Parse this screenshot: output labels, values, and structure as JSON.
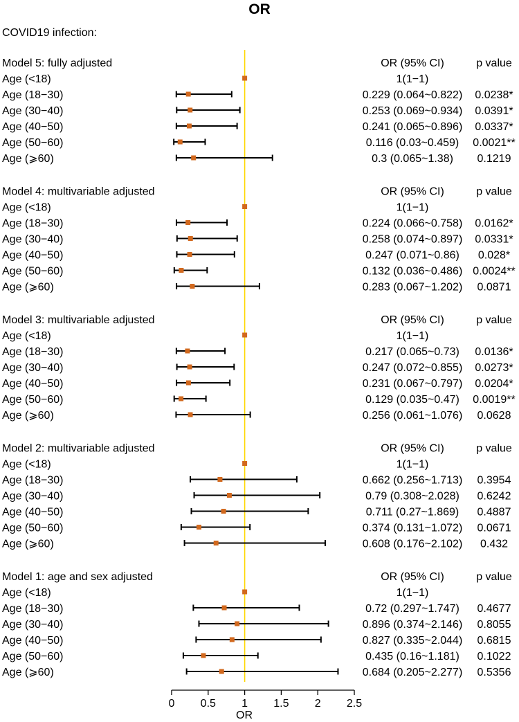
{
  "colors": {
    "ref_line": "#ffd700",
    "point": "#d2691e",
    "bar": "#000000"
  },
  "chart_data": {
    "type": "forest",
    "title": "OR",
    "subtitle": "COVID19 infection:",
    "xlabel": "OR",
    "xlim": [
      0,
      2.5
    ],
    "xticks": [
      0,
      0.5,
      1,
      1.5,
      2,
      2.5
    ],
    "tick_labels": [
      "0",
      "0.5",
      "1",
      "1.5",
      "2",
      "2.5"
    ],
    "reference_value": 1,
    "or_header": "OR (95% CI)",
    "p_header": "p value",
    "groups": [
      {
        "title": "Model 5: fully adjusted",
        "rows": [
          {
            "label": "Age (<18)",
            "or": 1,
            "lo": 1,
            "hi": 1,
            "ci_text": "1(1−1)",
            "p": ""
          },
          {
            "label": "Age (18−30)",
            "or": 0.229,
            "lo": 0.064,
            "hi": 0.822,
            "ci_text": "0.229 (0.064~0.822)",
            "p": "0.0238*"
          },
          {
            "label": "Age (30−40)",
            "or": 0.253,
            "lo": 0.069,
            "hi": 0.934,
            "ci_text": "0.253 (0.069~0.934)",
            "p": "0.0391*"
          },
          {
            "label": "Age (40−50)",
            "or": 0.241,
            "lo": 0.065,
            "hi": 0.896,
            "ci_text": "0.241 (0.065~0.896)",
            "p": "0.0337*"
          },
          {
            "label": "Age (50−60)",
            "or": 0.116,
            "lo": 0.03,
            "hi": 0.459,
            "ci_text": "0.116 (0.03~0.459)",
            "p": "0.0021**"
          },
          {
            "label": "Age (⩾60)",
            "or": 0.3,
            "lo": 0.065,
            "hi": 1.38,
            "ci_text": "0.3 (0.065~1.38)",
            "p": "0.1219"
          }
        ]
      },
      {
        "title": "Model 4: multivariable adjusted",
        "rows": [
          {
            "label": "Age (<18)",
            "or": 1,
            "lo": 1,
            "hi": 1,
            "ci_text": "1(1−1)",
            "p": ""
          },
          {
            "label": "Age (18−30)",
            "or": 0.224,
            "lo": 0.066,
            "hi": 0.758,
            "ci_text": "0.224 (0.066~0.758)",
            "p": "0.0162*"
          },
          {
            "label": "Age (30−40)",
            "or": 0.258,
            "lo": 0.074,
            "hi": 0.897,
            "ci_text": "0.258 (0.074~0.897)",
            "p": "0.0331*"
          },
          {
            "label": "Age (40−50)",
            "or": 0.247,
            "lo": 0.071,
            "hi": 0.86,
            "ci_text": "0.247 (0.071~0.86)",
            "p": "0.028*"
          },
          {
            "label": "Age (50−60)",
            "or": 0.132,
            "lo": 0.036,
            "hi": 0.486,
            "ci_text": "0.132 (0.036~0.486)",
            "p": "0.0024**"
          },
          {
            "label": "Age (⩾60)",
            "or": 0.283,
            "lo": 0.067,
            "hi": 1.202,
            "ci_text": "0.283 (0.067~1.202)",
            "p": "0.0871"
          }
        ]
      },
      {
        "title": "Model 3: multivariable adjusted",
        "rows": [
          {
            "label": "Age (<18)",
            "or": 1,
            "lo": 1,
            "hi": 1,
            "ci_text": "1(1−1)",
            "p": ""
          },
          {
            "label": "Age (18−30)",
            "or": 0.217,
            "lo": 0.065,
            "hi": 0.73,
            "ci_text": "0.217 (0.065~0.73)",
            "p": "0.0136*"
          },
          {
            "label": "Age (30−40)",
            "or": 0.247,
            "lo": 0.072,
            "hi": 0.855,
            "ci_text": "0.247 (0.072~0.855)",
            "p": "0.0273*"
          },
          {
            "label": "Age (40−50)",
            "or": 0.231,
            "lo": 0.067,
            "hi": 0.797,
            "ci_text": "0.231 (0.067~0.797)",
            "p": "0.0204*"
          },
          {
            "label": "Age (50−60)",
            "or": 0.129,
            "lo": 0.035,
            "hi": 0.47,
            "ci_text": "0.129 (0.035~0.47)",
            "p": "0.0019**"
          },
          {
            "label": "Age (⩾60)",
            "or": 0.256,
            "lo": 0.061,
            "hi": 1.076,
            "ci_text": "0.256 (0.061~1.076)",
            "p": "0.0628"
          }
        ]
      },
      {
        "title": "Model 2: multivariable adjusted",
        "rows": [
          {
            "label": "Age (<18)",
            "or": 1,
            "lo": 1,
            "hi": 1,
            "ci_text": "1(1−1)",
            "p": ""
          },
          {
            "label": "Age (18−30)",
            "or": 0.662,
            "lo": 0.256,
            "hi": 1.713,
            "ci_text": "0.662 (0.256~1.713)",
            "p": "0.3954"
          },
          {
            "label": "Age (30−40)",
            "or": 0.79,
            "lo": 0.308,
            "hi": 2.028,
            "ci_text": "0.79 (0.308~2.028)",
            "p": "0.6242"
          },
          {
            "label": "Age (40−50)",
            "or": 0.711,
            "lo": 0.27,
            "hi": 1.869,
            "ci_text": "0.711 (0.27~1.869)",
            "p": "0.4887"
          },
          {
            "label": "Age (50−60)",
            "or": 0.374,
            "lo": 0.131,
            "hi": 1.072,
            "ci_text": "0.374 (0.131~1.072)",
            "p": "0.0671"
          },
          {
            "label": "Age (⩾60)",
            "or": 0.608,
            "lo": 0.176,
            "hi": 2.102,
            "ci_text": "0.608 (0.176~2.102)",
            "p": "0.432"
          }
        ]
      },
      {
        "title": "Model 1: age and sex adjusted",
        "rows": [
          {
            "label": "Age (<18)",
            "or": 1,
            "lo": 1,
            "hi": 1,
            "ci_text": "1(1−1)",
            "p": ""
          },
          {
            "label": "Age (18−30)",
            "or": 0.72,
            "lo": 0.297,
            "hi": 1.747,
            "ci_text": "0.72 (0.297~1.747)",
            "p": "0.4677"
          },
          {
            "label": "Age (30−40)",
            "or": 0.896,
            "lo": 0.374,
            "hi": 2.146,
            "ci_text": "0.896 (0.374~2.146)",
            "p": "0.8055"
          },
          {
            "label": "Age (40−50)",
            "or": 0.827,
            "lo": 0.335,
            "hi": 2.044,
            "ci_text": "0.827 (0.335~2.044)",
            "p": "0.6815"
          },
          {
            "label": "Age (50−60)",
            "or": 0.435,
            "lo": 0.16,
            "hi": 1.181,
            "ci_text": "0.435 (0.16~1.181)",
            "p": "0.1022"
          },
          {
            "label": "Age (⩾60)",
            "or": 0.684,
            "lo": 0.205,
            "hi": 2.277,
            "ci_text": "0.684 (0.205~2.277)",
            "p": "0.5356"
          }
        ]
      }
    ]
  }
}
